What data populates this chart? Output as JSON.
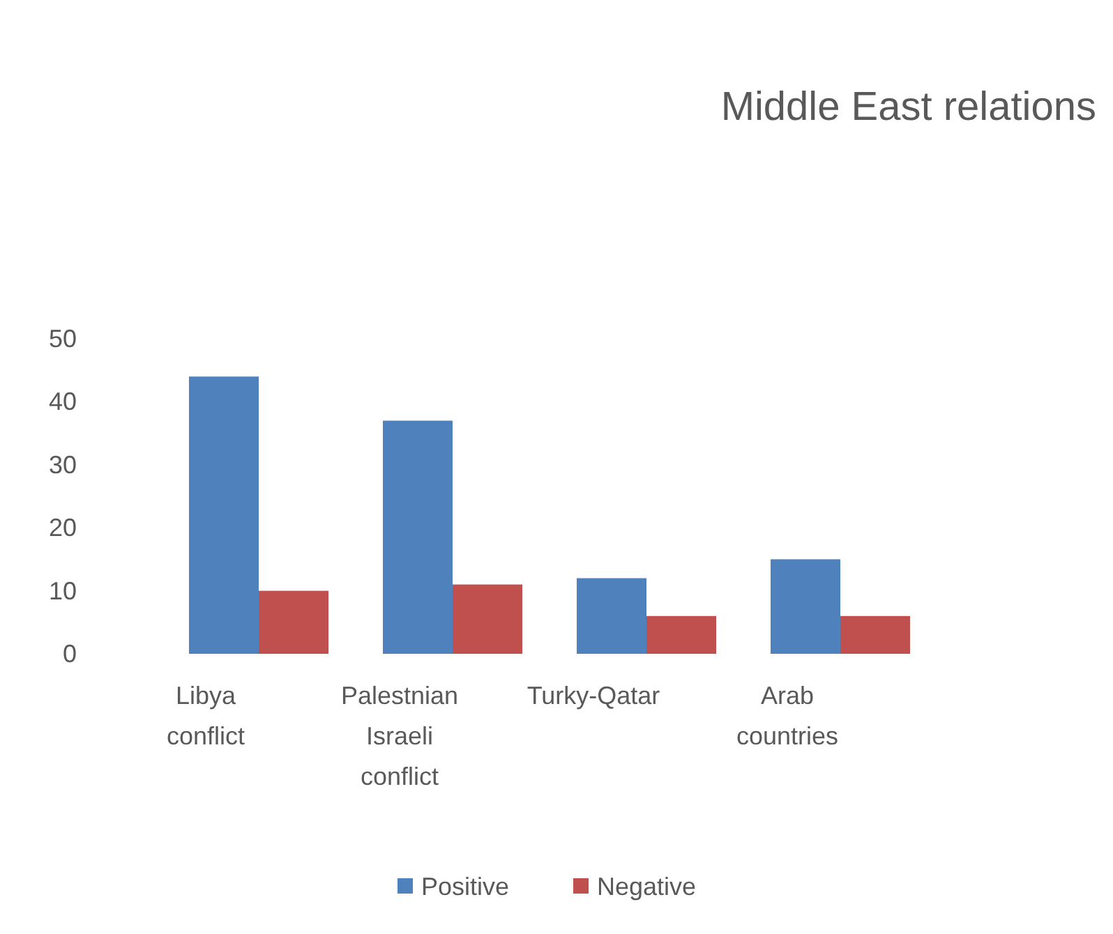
{
  "chart_data": {
    "type": "bar",
    "title": "Middle East relations",
    "categories": [
      "Libya conflict",
      "Palestnian Israeli conflict",
      "Turky-Qatar",
      "Arab countries"
    ],
    "series": [
      {
        "name": "Positive",
        "color": "#4f81bd",
        "values": [
          44,
          37,
          12,
          15
        ]
      },
      {
        "name": "Negative",
        "color": "#c0504d",
        "values": [
          10,
          11,
          6,
          6
        ]
      }
    ],
    "ylim": [
      0,
      50
    ],
    "yticks": [
      0,
      10,
      20,
      30,
      40,
      50
    ],
    "legend": "bottom"
  }
}
